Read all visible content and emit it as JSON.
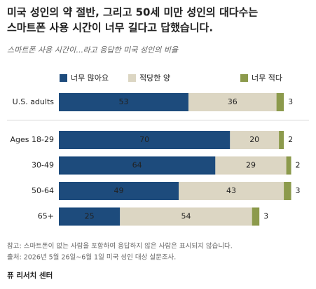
{
  "chart_data": {
    "type": "stacked-bar",
    "title": [
      "미국 성인의 약 절반, 그리고 50세 미만 성인의 대다수는",
      "스마트폰 사용 시간이 너무 길다고 답했습니다."
    ],
    "subtitle": "스마트폰 사용 시간이...라고 응답한 미국 성인의 비율",
    "categories": [
      "U.S. adults",
      "Ages 18-29",
      "30-49",
      "50-64",
      "65+"
    ],
    "series": [
      {
        "name": "너무 많아요",
        "color": "#1d4b7c",
        "values": [
          53,
          70,
          64,
          49,
          25
        ]
      },
      {
        "name": "적당한 양",
        "color": "#dcd6c3",
        "values": [
          36,
          20,
          29,
          43,
          54
        ]
      },
      {
        "name": "너무 적다",
        "color": "#8c9a4c",
        "values": [
          3,
          2,
          2,
          3,
          3
        ]
      }
    ],
    "notes": [
      "참고: 스마트폰이 없는 사람을 포함하여 응답하지 않은 사람은 표시되지 않습니다.",
      "출처: 2026년 5월 26일~6월 1일 미국 성인 대상 설문조사."
    ],
    "source": "퓨 리서치 센터"
  }
}
